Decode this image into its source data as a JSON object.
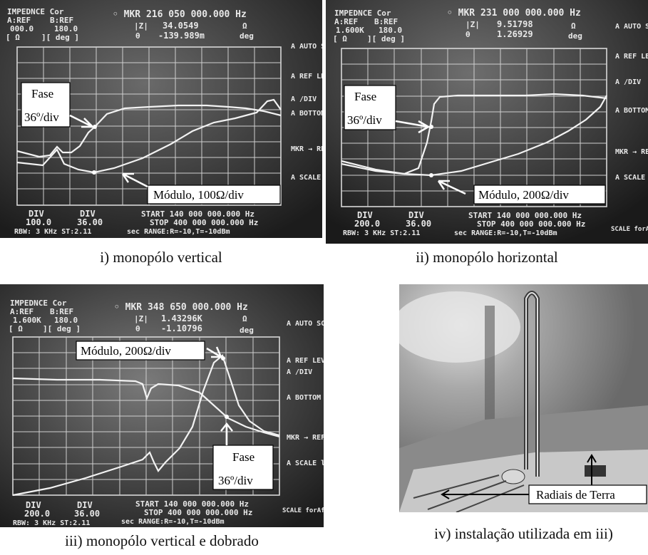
{
  "panel1": {
    "screen": {
      "h_mode": "IMPEDNCE Cor",
      "h_a": "A:REF",
      "h_b": "B:REF",
      "h_aval": "000.0",
      "h_bval": "180.0",
      "h_aunit": "[ Ω",
      "h_bunit": "][ deg ]",
      "mkr": "◦ MKR 216 050 000.000 Hz",
      "z_label": "|Z|",
      "z_val": "34.0549",
      "z_unit": "Ω",
      "ph_label": "θ",
      "ph_val": "-139.989m",
      "ph_unit": "deg",
      "div1_label": "DIV",
      "div1_val": "100.0",
      "div2_label": "DIV",
      "div2_val": "36.00",
      "rbw": "RBW: 3 KHz ST:2.11",
      "start": "START 140 000 000.000 Hz",
      "stop": "STOP 400 000 000.000 Hz",
      "range": "sec RANGE:R=-10,T=-10dBm",
      "softkeys": [
        "A AUTO SCALE",
        "A REF LEVEL",
        "A /DIV",
        "A BOTTOM",
        "MKR → REF",
        "A SCALE lin log"
      ]
    },
    "callout_phase": "Fase",
    "callout_phase_div": "36º/div",
    "callout_mag": "Módulo, 100Ω/div",
    "caption": "i) monopólo vertical"
  },
  "panel2": {
    "screen": {
      "h_mode": "IMPEDNCE Cor",
      "h_a": "A:REF",
      "h_b": "B:REF",
      "h_aval": "1.600K",
      "h_bval": "180.0",
      "h_aunit": "[ Ω",
      "h_bunit": "][ deg ]",
      "mkr": "◦ MKR 231 000 000.000 Hz",
      "z_label": "|Z|",
      "z_val": "9.51798",
      "z_unit": "Ω",
      "ph_label": "θ",
      "ph_val": "1.26929",
      "ph_unit": "deg",
      "div1_label": "DIV",
      "div1_val": "200.0",
      "div2_label": "DIV",
      "div2_val": "36.00",
      "rbw": "RBW: 3 KHz ST:2.11",
      "start": "START 140 000 000.000 Hz",
      "stop": "STOP 400 000 000.000 Hz",
      "range": "sec RANGE:R=-10,T=-10dBm",
      "softkeys": [
        "A AUTO SCALE",
        "A REF LEVEL",
        "A /DIV",
        "A BOTTOM",
        "MKR → REF",
        "A SCALE lin log",
        "SCALE forAforB"
      ]
    },
    "callout_phase": "Fase",
    "callout_phase_div": "36º/div",
    "callout_mag": "Módulo, 200Ω/div",
    "caption": "ii) monopólo horizontal"
  },
  "panel3": {
    "screen": {
      "h_mode": "IMPEDNCE Cor",
      "h_a": "A:REF",
      "h_b": "B:REF",
      "h_aval": "1.600K",
      "h_bval": "180.0",
      "h_aunit": "[ Ω",
      "h_bunit": "][ deg ]",
      "mkr": "◦ MKR 348 650 000.000 Hz",
      "z_label": "|Z|",
      "z_val": "1.43296K",
      "z_unit": "Ω",
      "ph_label": "θ",
      "ph_val": "-1.10796",
      "ph_unit": "deg",
      "div1_label": "DIV",
      "div1_val": "200.0",
      "div2_label": "DIV",
      "div2_val": "36.00",
      "rbw": "RBW: 3 KHz ST:2.11",
      "start": "START 140 000 000.000 Hz",
      "stop": "STOP 400 000 000.000 Hz",
      "range": "sec RANGE:R=-10,T=-10dBm",
      "softkeys": [
        "A AUTO SCALE",
        "A REF LEVEL",
        "A /DIV",
        "A BOTTOM",
        "MKR → REF",
        "A SCALE lin log",
        "SCALE forAforB"
      ]
    },
    "callout_phase": "Fase",
    "callout_phase_div": "36º/div",
    "callout_mag": "Módulo, 200Ω/div",
    "caption": "iii) monopólo vertical e dobrado"
  },
  "panel4": {
    "callout_label": "Radiais de Terra",
    "caption": "iv) instalação utilizada em iii)"
  }
}
